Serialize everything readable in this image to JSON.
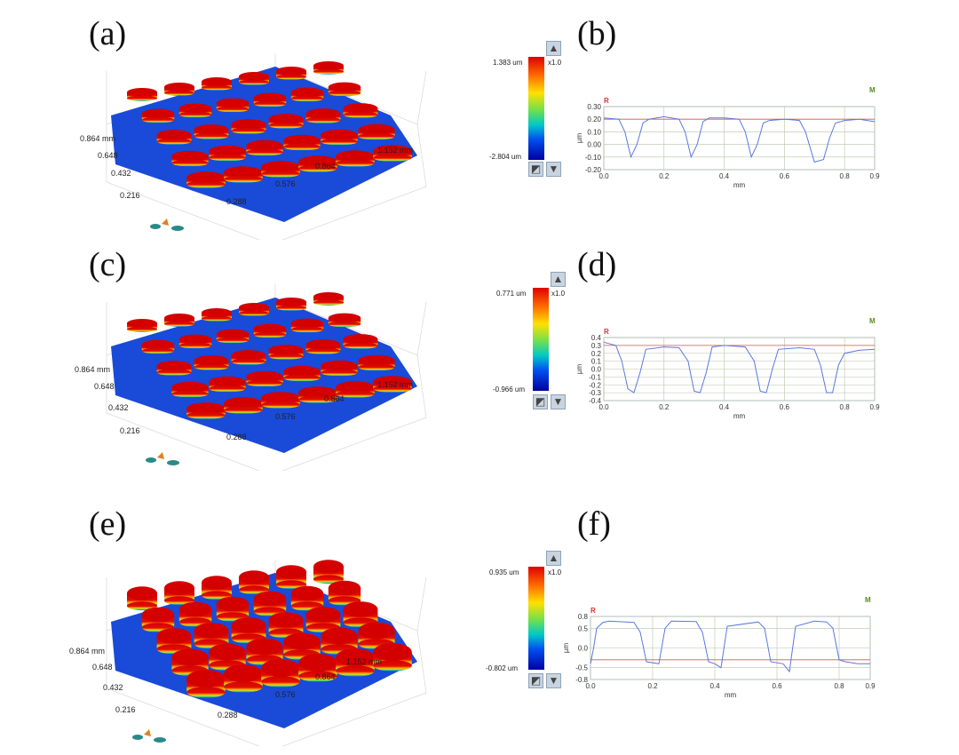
{
  "figure": {
    "rows": [
      {
        "surface_label": "(a)",
        "profile_label": "(b)",
        "surface_axes": {
          "y_ticks": [
            "0.864 mm",
            "0.648",
            "0.432",
            "0.216"
          ],
          "x_ticks": [
            "0.288",
            "0.576",
            "0.864",
            "1.152 mm"
          ]
        },
        "legend": {
          "max": "1.383 um",
          "min": "-2.804 um",
          "scale": "x1.0"
        },
        "profile": {
          "marker_r": "R",
          "marker_m": "M",
          "ylabel": "µm",
          "xlabel": "mm",
          "y_ticks": [
            "0.30",
            "0.20",
            "0.10",
            "0.00",
            "-0.10",
            "-0.20"
          ],
          "x_ticks": [
            "0.0",
            "0.2",
            "0.4",
            "0.6",
            "0.8",
            "0.9"
          ]
        }
      },
      {
        "surface_label": "(c)",
        "profile_label": "(d)",
        "surface_axes": {
          "y_ticks": [
            "0.864 mm",
            "0.648",
            "0.432",
            "0.216"
          ],
          "x_ticks": [
            "0.288",
            "0.576",
            "0.864",
            "1.152 mm"
          ]
        },
        "legend": {
          "max": "0.771 um",
          "min": "-0.966 um",
          "scale": "x1.0"
        },
        "profile": {
          "marker_r": "R",
          "marker_m": "M",
          "ylabel": "µm",
          "xlabel": "mm",
          "y_ticks": [
            "0.4",
            "0.3",
            "0.2",
            "0.1",
            "0.0",
            "-0.1",
            "-0.2",
            "-0.3",
            "-0.4"
          ],
          "x_ticks": [
            "0.0",
            "0.2",
            "0.4",
            "0.6",
            "0.8",
            "0.9"
          ]
        }
      },
      {
        "surface_label": "(e)",
        "profile_label": "(f)",
        "surface_axes": {
          "y_ticks": [
            "0.864 mm",
            "0.648",
            "0.432",
            "0.216"
          ],
          "x_ticks": [
            "0.288",
            "0.576",
            "0.864",
            "1.152 mm"
          ]
        },
        "legend": {
          "max": "0.935 um",
          "min": "-0.802 um",
          "scale": "x1.0"
        },
        "profile": {
          "marker_r": "R",
          "marker_m": "M",
          "ylabel": "µm",
          "xlabel": "mm",
          "y_ticks": [
            "0.8",
            "0.5",
            "0.0",
            "-0.5",
            "-0.8"
          ],
          "x_ticks": [
            "0.0",
            "0.2",
            "0.4",
            "0.6",
            "0.8",
            "0.9"
          ]
        }
      }
    ]
  },
  "chart_data": [
    {
      "type": "line",
      "xlabel": "mm",
      "ylabel": "µm",
      "xlim": [
        0,
        0.9
      ],
      "ylim": [
        -0.2,
        0.3
      ],
      "reference_line": 0.2,
      "series": [
        {
          "x": [
            0.0,
            0.05,
            0.07,
            0.09,
            0.11,
            0.13,
            0.15,
            0.2,
            0.25,
            0.27,
            0.29,
            0.31,
            0.33,
            0.35,
            0.4,
            0.45,
            0.47,
            0.49,
            0.51,
            0.53,
            0.55,
            0.6,
            0.65,
            0.67,
            0.7,
            0.73,
            0.75,
            0.77,
            0.8,
            0.85,
            0.9
          ],
          "y": [
            0.21,
            0.2,
            0.1,
            -0.1,
            0.0,
            0.17,
            0.2,
            0.22,
            0.2,
            0.1,
            -0.1,
            0.0,
            0.18,
            0.21,
            0.21,
            0.2,
            0.1,
            -0.1,
            0.0,
            0.17,
            0.19,
            0.2,
            0.19,
            0.1,
            -0.14,
            -0.12,
            0.05,
            0.17,
            0.19,
            0.2,
            0.18
          ]
        }
      ]
    },
    {
      "type": "line",
      "xlabel": "mm",
      "ylabel": "µm",
      "xlim": [
        0,
        0.9
      ],
      "ylim": [
        -0.4,
        0.4
      ],
      "reference_line": 0.3,
      "series": [
        {
          "x": [
            0.0,
            0.04,
            0.06,
            0.08,
            0.1,
            0.12,
            0.14,
            0.2,
            0.25,
            0.28,
            0.3,
            0.32,
            0.34,
            0.36,
            0.4,
            0.47,
            0.5,
            0.52,
            0.54,
            0.56,
            0.58,
            0.65,
            0.7,
            0.72,
            0.74,
            0.76,
            0.78,
            0.8,
            0.85,
            0.9
          ],
          "y": [
            0.34,
            0.3,
            0.1,
            -0.25,
            -0.3,
            -0.05,
            0.25,
            0.28,
            0.27,
            0.1,
            -0.28,
            -0.3,
            -0.05,
            0.28,
            0.3,
            0.28,
            0.1,
            -0.28,
            -0.3,
            0.0,
            0.25,
            0.27,
            0.25,
            0.05,
            -0.3,
            -0.3,
            0.05,
            0.2,
            0.24,
            0.25
          ]
        }
      ]
    },
    {
      "type": "line",
      "xlabel": "mm",
      "ylabel": "µm",
      "xlim": [
        0,
        0.9
      ],
      "ylim": [
        -0.8,
        0.8
      ],
      "reference_line": -0.3,
      "series": [
        {
          "x": [
            0.0,
            0.01,
            0.02,
            0.04,
            0.06,
            0.14,
            0.16,
            0.18,
            0.22,
            0.24,
            0.26,
            0.34,
            0.36,
            0.38,
            0.4,
            0.42,
            0.44,
            0.54,
            0.56,
            0.58,
            0.62,
            0.64,
            0.66,
            0.72,
            0.76,
            0.78,
            0.8,
            0.82,
            0.86,
            0.9
          ],
          "y": [
            -0.4,
            0.0,
            0.5,
            0.65,
            0.68,
            0.65,
            0.4,
            -0.35,
            -0.4,
            0.5,
            0.68,
            0.67,
            0.4,
            -0.35,
            -0.4,
            -0.5,
            0.55,
            0.66,
            0.5,
            -0.35,
            -0.4,
            -0.6,
            0.55,
            0.68,
            0.66,
            0.5,
            -0.3,
            -0.35,
            -0.4,
            -0.4
          ]
        }
      ]
    }
  ]
}
